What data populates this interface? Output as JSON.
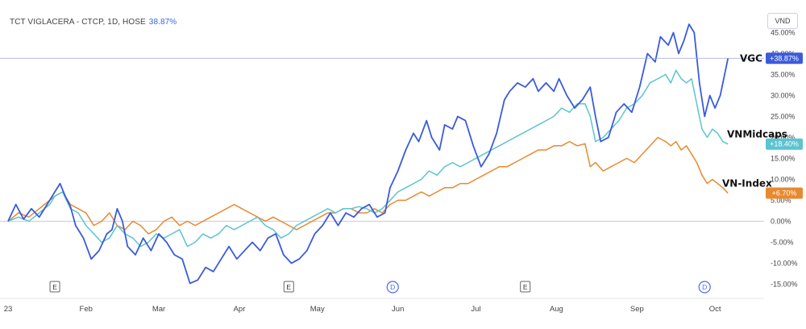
{
  "header": {
    "title": "TCT VIGLACERA - CTCP, 1D, HOSE",
    "change": "38.87%"
  },
  "unit_button": "VND",
  "chart_data": {
    "type": "line",
    "yaxis": {
      "ticks": [
        "-15.00%",
        "-10.00%",
        "-5.00%",
        "0.00%",
        "5.00%",
        "10.00%",
        "15.00%",
        "20.00%",
        "25.00%",
        "30.00%",
        "35.00%",
        "40.00%",
        "45.00%"
      ],
      "tick_values": [
        -15,
        -10,
        -5,
        0,
        5,
        10,
        15,
        20,
        25,
        30,
        35,
        40,
        45
      ],
      "ylim": [
        -15.5,
        47
      ]
    },
    "xaxis": {
      "ticks": [
        "23",
        "Feb",
        "Mar",
        "Apr",
        "May",
        "Jun",
        "Jul",
        "Aug",
        "Sep",
        "Oct"
      ],
      "tick_days": [
        0,
        30,
        58,
        89,
        119,
        150,
        180,
        211,
        242,
        272
      ],
      "xlim": [
        0,
        276
      ]
    },
    "events": [
      {
        "label": "E",
        "day": 18,
        "kind": "earnings"
      },
      {
        "label": "E",
        "day": 108,
        "kind": "earnings"
      },
      {
        "label": "D",
        "day": 148,
        "kind": "dividend"
      },
      {
        "label": "E",
        "day": 199,
        "kind": "earnings"
      },
      {
        "label": "D",
        "day": 268,
        "kind": "dividend"
      }
    ],
    "series": [
      {
        "name": "VGC",
        "color": "#3b5bdb",
        "badge": "+38.87%",
        "points": [
          [
            0,
            0
          ],
          [
            3,
            4
          ],
          [
            6,
            0.5
          ],
          [
            9,
            3
          ],
          [
            12,
            1
          ],
          [
            15,
            4
          ],
          [
            18,
            7
          ],
          [
            20,
            9
          ],
          [
            22,
            6
          ],
          [
            24,
            3.5
          ],
          [
            26,
            -1
          ],
          [
            29,
            -4
          ],
          [
            32,
            -9
          ],
          [
            35,
            -7
          ],
          [
            38,
            -3
          ],
          [
            40,
            -2
          ],
          [
            42,
            3
          ],
          [
            44,
            0
          ],
          [
            46,
            -6
          ],
          [
            49,
            -8
          ],
          [
            52,
            -4
          ],
          [
            55,
            -7
          ],
          [
            58,
            -3
          ],
          [
            61,
            -5
          ],
          [
            64,
            -8
          ],
          [
            67,
            -9
          ],
          [
            70,
            -14.8
          ],
          [
            73,
            -14
          ],
          [
            76,
            -11
          ],
          [
            79,
            -12
          ],
          [
            82,
            -9
          ],
          [
            85,
            -6
          ],
          [
            88,
            -9
          ],
          [
            91,
            -7
          ],
          [
            94,
            -5
          ],
          [
            97,
            -7
          ],
          [
            100,
            -4
          ],
          [
            103,
            -3
          ],
          [
            106,
            -8
          ],
          [
            109,
            -10
          ],
          [
            112,
            -9
          ],
          [
            115,
            -7
          ],
          [
            118,
            -3
          ],
          [
            121,
            -1
          ],
          [
            124,
            2
          ],
          [
            127,
            -1
          ],
          [
            130,
            2
          ],
          [
            133,
            1
          ],
          [
            136,
            3
          ],
          [
            139,
            4
          ],
          [
            142,
            1
          ],
          [
            145,
            2
          ],
          [
            147,
            8
          ],
          [
            150,
            12
          ],
          [
            153,
            17
          ],
          [
            156,
            21
          ],
          [
            158,
            19
          ],
          [
            161,
            24
          ],
          [
            163,
            20
          ],
          [
            166,
            17
          ],
          [
            168,
            23
          ],
          [
            171,
            22
          ],
          [
            173,
            25
          ],
          [
            176,
            24
          ],
          [
            179,
            18
          ],
          [
            182,
            13
          ],
          [
            185,
            16
          ],
          [
            188,
            21
          ],
          [
            191,
            29
          ],
          [
            193,
            31
          ],
          [
            196,
            33
          ],
          [
            199,
            32
          ],
          [
            202,
            34
          ],
          [
            204,
            31
          ],
          [
            207,
            33
          ],
          [
            210,
            31
          ],
          [
            212,
            34
          ],
          [
            215,
            30
          ],
          [
            218,
            27
          ],
          [
            221,
            29
          ],
          [
            224,
            32
          ],
          [
            226,
            25
          ],
          [
            228,
            19
          ],
          [
            231,
            20
          ],
          [
            234,
            26
          ],
          [
            237,
            28
          ],
          [
            240,
            26
          ],
          [
            243,
            32
          ],
          [
            246,
            40
          ],
          [
            249,
            38
          ],
          [
            251,
            44
          ],
          [
            254,
            42
          ],
          [
            256,
            45
          ],
          [
            258,
            40
          ],
          [
            260,
            43
          ],
          [
            262,
            47
          ],
          [
            264,
            45
          ],
          [
            266,
            33
          ],
          [
            268,
            25
          ],
          [
            270,
            30
          ],
          [
            272,
            27
          ],
          [
            274,
            30
          ],
          [
            277,
            38.87
          ]
        ]
      },
      {
        "name": "VNMidcaps",
        "color": "#5bc4cf",
        "badge": "+18.40%",
        "points": [
          [
            0,
            0
          ],
          [
            4,
            1
          ],
          [
            8,
            0
          ],
          [
            12,
            2
          ],
          [
            16,
            4
          ],
          [
            18,
            6
          ],
          [
            21,
            7
          ],
          [
            24,
            3
          ],
          [
            27,
            2
          ],
          [
            30,
            -1
          ],
          [
            33,
            -3
          ],
          [
            36,
            -5
          ],
          [
            39,
            -4
          ],
          [
            42,
            -1
          ],
          [
            45,
            -3
          ],
          [
            48,
            -4
          ],
          [
            51,
            -6
          ],
          [
            54,
            -5
          ],
          [
            57,
            -3
          ],
          [
            60,
            -4
          ],
          [
            63,
            -3
          ],
          [
            66,
            -2
          ],
          [
            69,
            -6
          ],
          [
            72,
            -5
          ],
          [
            75,
            -3
          ],
          [
            78,
            -4
          ],
          [
            81,
            -3
          ],
          [
            84,
            -1
          ],
          [
            87,
            -2
          ],
          [
            90,
            -1
          ],
          [
            93,
            0
          ],
          [
            96,
            1
          ],
          [
            99,
            -1
          ],
          [
            102,
            -2
          ],
          [
            105,
            -4
          ],
          [
            108,
            -3
          ],
          [
            111,
            -1
          ],
          [
            114,
            0
          ],
          [
            117,
            1
          ],
          [
            120,
            2
          ],
          [
            123,
            3
          ],
          [
            126,
            2
          ],
          [
            129,
            3
          ],
          [
            132,
            3
          ],
          [
            135,
            3.5
          ],
          [
            138,
            3
          ],
          [
            141,
            2
          ],
          [
            144,
            3
          ],
          [
            147,
            5
          ],
          [
            150,
            7
          ],
          [
            153,
            8
          ],
          [
            156,
            9
          ],
          [
            159,
            10
          ],
          [
            162,
            12
          ],
          [
            165,
            11
          ],
          [
            168,
            13
          ],
          [
            171,
            14
          ],
          [
            174,
            13
          ],
          [
            177,
            14
          ],
          [
            180,
            15
          ],
          [
            183,
            16
          ],
          [
            186,
            17
          ],
          [
            189,
            18
          ],
          [
            192,
            19
          ],
          [
            195,
            20
          ],
          [
            198,
            21
          ],
          [
            201,
            22
          ],
          [
            204,
            23
          ],
          [
            207,
            24
          ],
          [
            210,
            25
          ],
          [
            213,
            27
          ],
          [
            216,
            26
          ],
          [
            219,
            28
          ],
          [
            222,
            28
          ],
          [
            224,
            25
          ],
          [
            226,
            19
          ],
          [
            229,
            20
          ],
          [
            232,
            22
          ],
          [
            235,
            24
          ],
          [
            238,
            27
          ],
          [
            241,
            28
          ],
          [
            244,
            30
          ],
          [
            247,
            33
          ],
          [
            250,
            34
          ],
          [
            253,
            35
          ],
          [
            255,
            33
          ],
          [
            257,
            36
          ],
          [
            259,
            34
          ],
          [
            261,
            33
          ],
          [
            263,
            34
          ],
          [
            265,
            28
          ],
          [
            267,
            22
          ],
          [
            269,
            20
          ],
          [
            271,
            22
          ],
          [
            273,
            21
          ],
          [
            275,
            19
          ],
          [
            277,
            18.4
          ]
        ]
      },
      {
        "name": "VN-Index",
        "color": "#e8892f",
        "badge": "+6.70%",
        "points": [
          [
            0,
            0
          ],
          [
            4,
            2
          ],
          [
            8,
            1
          ],
          [
            12,
            3
          ],
          [
            16,
            5
          ],
          [
            18,
            6
          ],
          [
            21,
            7
          ],
          [
            24,
            4
          ],
          [
            27,
            3
          ],
          [
            30,
            2
          ],
          [
            33,
            -1
          ],
          [
            36,
            0
          ],
          [
            39,
            2
          ],
          [
            42,
            -1
          ],
          [
            45,
            -2
          ],
          [
            48,
            0
          ],
          [
            51,
            -1
          ],
          [
            54,
            -3
          ],
          [
            57,
            -2
          ],
          [
            60,
            0
          ],
          [
            63,
            1
          ],
          [
            66,
            -1
          ],
          [
            69,
            0
          ],
          [
            72,
            -1
          ],
          [
            75,
            0
          ],
          [
            78,
            1
          ],
          [
            81,
            2
          ],
          [
            84,
            3
          ],
          [
            87,
            4
          ],
          [
            90,
            3
          ],
          [
            93,
            2
          ],
          [
            96,
            1
          ],
          [
            99,
            0
          ],
          [
            102,
            1
          ],
          [
            105,
            0
          ],
          [
            108,
            -1
          ],
          [
            111,
            -2
          ],
          [
            114,
            -1
          ],
          [
            117,
            0
          ],
          [
            120,
            1
          ],
          [
            123,
            2
          ],
          [
            126,
            2
          ],
          [
            129,
            3
          ],
          [
            132,
            3
          ],
          [
            135,
            2
          ],
          [
            138,
            2
          ],
          [
            141,
            3
          ],
          [
            144,
            2
          ],
          [
            147,
            4
          ],
          [
            150,
            5
          ],
          [
            153,
            5
          ],
          [
            156,
            6
          ],
          [
            159,
            7
          ],
          [
            162,
            6
          ],
          [
            165,
            7
          ],
          [
            168,
            8
          ],
          [
            171,
            8
          ],
          [
            174,
            9
          ],
          [
            177,
            9
          ],
          [
            180,
            10
          ],
          [
            183,
            11
          ],
          [
            186,
            12
          ],
          [
            189,
            13
          ],
          [
            192,
            13
          ],
          [
            195,
            14
          ],
          [
            198,
            15
          ],
          [
            201,
            16
          ],
          [
            204,
            17
          ],
          [
            207,
            17
          ],
          [
            210,
            18
          ],
          [
            213,
            18
          ],
          [
            216,
            19
          ],
          [
            219,
            18
          ],
          [
            222,
            18.5
          ],
          [
            224,
            13
          ],
          [
            226,
            14
          ],
          [
            229,
            12
          ],
          [
            232,
            13
          ],
          [
            235,
            14
          ],
          [
            238,
            15
          ],
          [
            241,
            14
          ],
          [
            244,
            16
          ],
          [
            247,
            18
          ],
          [
            250,
            20
          ],
          [
            253,
            19
          ],
          [
            255,
            18
          ],
          [
            257,
            19
          ],
          [
            259,
            17
          ],
          [
            261,
            18
          ],
          [
            263,
            16
          ],
          [
            265,
            14
          ],
          [
            267,
            11
          ],
          [
            269,
            9
          ],
          [
            271,
            10
          ],
          [
            273,
            9
          ],
          [
            275,
            8
          ],
          [
            277,
            6.7
          ]
        ]
      }
    ]
  }
}
